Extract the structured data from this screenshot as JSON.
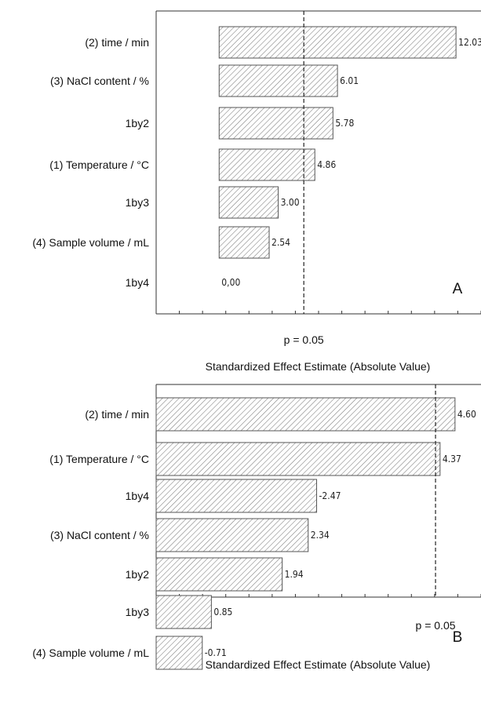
{
  "chart_data": [
    {
      "type": "bar",
      "orientation": "horizontal",
      "panel_label": "A",
      "categories": [
        "(2) time / min",
        "(3) NaCl content / %",
        "1by2",
        "(1) Temperature / °C",
        "1by3",
        "(4) Sample volume / mL",
        "1by4"
      ],
      "values": [
        12.03,
        6.01,
        5.78,
        4.86,
        3.0,
        2.54,
        0.0
      ],
      "value_labels": [
        "12.03",
        "6.01",
        "5.78",
        "4.86",
        "3.00",
        "2.54",
        "0,00"
      ],
      "xlabel": "Standardized Effect Estimate (Absolute Value)",
      "xlim": [
        -3.2,
        13.3
      ],
      "threshold": {
        "value": 4.3,
        "label": "p = 0.05"
      },
      "bar_fill": "hatched-gray"
    },
    {
      "type": "bar",
      "orientation": "horizontal",
      "panel_label": "B",
      "categories": [
        "(2) time / min",
        "(1) Temperature / °C",
        "1by4",
        "(3) NaCl content / %",
        "1by2",
        "1by3",
        "(4) Sample volume / mL"
      ],
      "values": [
        4.6,
        4.37,
        2.47,
        2.34,
        1.94,
        0.85,
        0.71
      ],
      "value_labels": [
        "4.60",
        "4.37",
        "-2.47",
        "2.34",
        "1.94",
        "0.85",
        "-0.71"
      ],
      "xlabel": "Standardized Effect Estimate (Absolute Value)",
      "xlim": [
        0,
        5.0
      ],
      "threshold": {
        "value": 4.3,
        "label": "p = 0.05"
      },
      "bar_fill": "hatched-gray"
    }
  ]
}
